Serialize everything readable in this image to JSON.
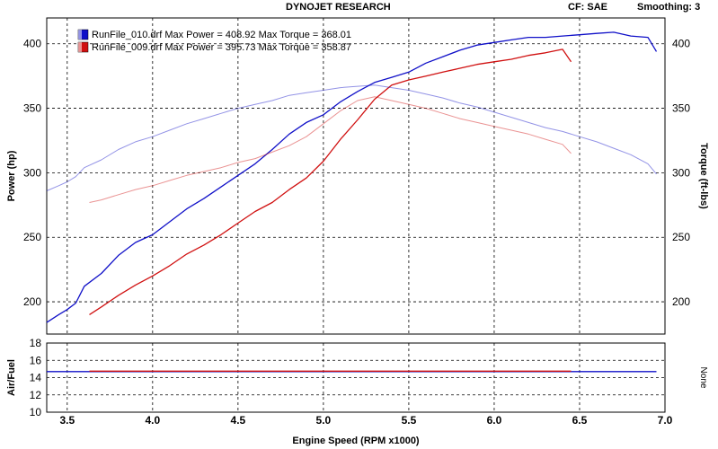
{
  "header": {
    "title": "DYNOJET RESEARCH",
    "cf": "CF: SAE",
    "smoothing": "Smoothing: 3"
  },
  "colors": {
    "run010": "#1010c8",
    "run009": "#d01010"
  },
  "chart_data": [
    {
      "type": "line",
      "xlabel": "Engine Speed (RPM x1000)",
      "ylabel_left": "Power (hp)",
      "ylabel_right": "Torque (ft-lbs)",
      "xlim": [
        3.38,
        7.0
      ],
      "ylim": [
        175,
        420
      ],
      "x_ticks": [
        3.5,
        4.0,
        4.5,
        5.0,
        5.5,
        6.0,
        6.5,
        7.0
      ],
      "x_tick_labels": [
        "3.5",
        "4.0",
        "4.5",
        "5.0",
        "5.5",
        "6.0",
        "6.5",
        "7.0"
      ],
      "y_ticks": [
        200,
        250,
        300,
        350,
        400
      ],
      "y_tick_labels": [
        "200",
        "250",
        "300",
        "350",
        "400"
      ],
      "y2_tick_labels": [
        "200",
        "250",
        "300",
        "350",
        "400"
      ],
      "grid": true,
      "legend": [
        {
          "text": "RunFile_010.drf Max Power = 408.92 Max Torque = 368.01"
        },
        {
          "text": "RunFile_009.drf Max Power = 395.73 Max Torque = 358.87"
        }
      ],
      "series": [
        {
          "name": "RunFile_010.drf Power",
          "color": "#1010c8",
          "points": [
            [
              3.38,
              184
            ],
            [
              3.45,
              190
            ],
            [
              3.5,
              194
            ],
            [
              3.55,
              199
            ],
            [
              3.6,
              212
            ],
            [
              3.7,
              222
            ],
            [
              3.8,
              236
            ],
            [
              3.9,
              246
            ],
            [
              4.0,
              252
            ],
            [
              4.1,
              262
            ],
            [
              4.2,
              272
            ],
            [
              4.3,
              280
            ],
            [
              4.4,
              289
            ],
            [
              4.5,
              298
            ],
            [
              4.6,
              307
            ],
            [
              4.7,
              318
            ],
            [
              4.8,
              330
            ],
            [
              4.9,
              339
            ],
            [
              5.0,
              345
            ],
            [
              5.1,
              355
            ],
            [
              5.2,
              363
            ],
            [
              5.3,
              370
            ],
            [
              5.4,
              374
            ],
            [
              5.5,
              378
            ],
            [
              5.6,
              385
            ],
            [
              5.7,
              390
            ],
            [
              5.8,
              395
            ],
            [
              5.9,
              399
            ],
            [
              6.0,
              401
            ],
            [
              6.1,
              403
            ],
            [
              6.2,
              405
            ],
            [
              6.3,
              405
            ],
            [
              6.4,
              406
            ],
            [
              6.5,
              407
            ],
            [
              6.6,
              408
            ],
            [
              6.7,
              408.9
            ],
            [
              6.8,
              406
            ],
            [
              6.9,
              405
            ],
            [
              6.95,
              394
            ]
          ]
        },
        {
          "name": "RunFile_009.drf Power",
          "color": "#d01010",
          "points": [
            [
              3.63,
              190
            ],
            [
              3.7,
              196
            ],
            [
              3.8,
              205
            ],
            [
              3.9,
              213
            ],
            [
              4.0,
              220
            ],
            [
              4.1,
              228
            ],
            [
              4.2,
              237
            ],
            [
              4.3,
              244
            ],
            [
              4.4,
              252
            ],
            [
              4.5,
              261
            ],
            [
              4.6,
              270
            ],
            [
              4.7,
              277
            ],
            [
              4.8,
              287
            ],
            [
              4.9,
              296
            ],
            [
              5.0,
              309
            ],
            [
              5.1,
              326
            ],
            [
              5.2,
              341
            ],
            [
              5.3,
              357
            ],
            [
              5.4,
              368
            ],
            [
              5.5,
              372
            ],
            [
              5.6,
              375
            ],
            [
              5.7,
              378
            ],
            [
              5.8,
              381
            ],
            [
              5.9,
              384
            ],
            [
              6.0,
              386
            ],
            [
              6.1,
              388
            ],
            [
              6.2,
              391
            ],
            [
              6.3,
              393
            ],
            [
              6.4,
              395.7
            ],
            [
              6.45,
              386
            ]
          ]
        },
        {
          "name": "RunFile_010.drf Torque",
          "color": "#1010c8",
          "points": [
            [
              3.38,
              286
            ],
            [
              3.45,
              290
            ],
            [
              3.5,
              293
            ],
            [
              3.55,
              297
            ],
            [
              3.6,
              304
            ],
            [
              3.7,
              310
            ],
            [
              3.8,
              318
            ],
            [
              3.9,
              324
            ],
            [
              4.0,
              328
            ],
            [
              4.1,
              333
            ],
            [
              4.2,
              338
            ],
            [
              4.3,
              342
            ],
            [
              4.4,
              346
            ],
            [
              4.5,
              350
            ],
            [
              4.6,
              353
            ],
            [
              4.7,
              356
            ],
            [
              4.8,
              360
            ],
            [
              4.9,
              362
            ],
            [
              5.0,
              364
            ],
            [
              5.1,
              366
            ],
            [
              5.2,
              367
            ],
            [
              5.3,
              368
            ],
            [
              5.4,
              366
            ],
            [
              5.5,
              364
            ],
            [
              5.6,
              361
            ],
            [
              5.7,
              358
            ],
            [
              5.8,
              354
            ],
            [
              5.9,
              351
            ],
            [
              6.0,
              347
            ],
            [
              6.1,
              343
            ],
            [
              6.2,
              339
            ],
            [
              6.3,
              335
            ],
            [
              6.4,
              332
            ],
            [
              6.5,
              328
            ],
            [
              6.6,
              324
            ],
            [
              6.7,
              319
            ],
            [
              6.8,
              314
            ],
            [
              6.9,
              307
            ],
            [
              6.95,
              299
            ]
          ]
        },
        {
          "name": "RunFile_009.drf Torque",
          "color": "#d01010",
          "points": [
            [
              3.63,
              277
            ],
            [
              3.7,
              279
            ],
            [
              3.8,
              283
            ],
            [
              3.9,
              287
            ],
            [
              4.0,
              290
            ],
            [
              4.1,
              294
            ],
            [
              4.2,
              298
            ],
            [
              4.3,
              301
            ],
            [
              4.4,
              304
            ],
            [
              4.5,
              308
            ],
            [
              4.6,
              311
            ],
            [
              4.7,
              316
            ],
            [
              4.8,
              321
            ],
            [
              4.9,
              328
            ],
            [
              5.0,
              338
            ],
            [
              5.1,
              348
            ],
            [
              5.2,
              356
            ],
            [
              5.3,
              358.9
            ],
            [
              5.4,
              356
            ],
            [
              5.5,
              353
            ],
            [
              5.6,
              350
            ],
            [
              5.7,
              346
            ],
            [
              5.8,
              342
            ],
            [
              5.9,
              339
            ],
            [
              6.0,
              336
            ],
            [
              6.1,
              333
            ],
            [
              6.2,
              330
            ],
            [
              6.3,
              326
            ],
            [
              6.4,
              322
            ],
            [
              6.45,
              315
            ]
          ]
        }
      ]
    },
    {
      "type": "line",
      "xlabel": "Engine Speed (RPM x1000)",
      "ylabel_left": "Air/Fuel",
      "ylabel_right": "None",
      "xlim": [
        3.38,
        7.0
      ],
      "ylim": [
        10,
        18
      ],
      "y_ticks": [
        10,
        12,
        14,
        16,
        18
      ],
      "y_tick_labels": [
        "10",
        "12",
        "14",
        "16",
        "18"
      ],
      "grid": true,
      "series": [
        {
          "name": "RunFile_010.drf Air/Fuel",
          "color": "#1010c8",
          "points": [
            [
              3.38,
              14.7
            ],
            [
              6.95,
              14.7
            ]
          ]
        },
        {
          "name": "RunFile_009.drf Air/Fuel",
          "color": "#d01010",
          "points": [
            [
              3.63,
              14.75
            ],
            [
              6.45,
              14.75
            ]
          ]
        }
      ]
    }
  ]
}
